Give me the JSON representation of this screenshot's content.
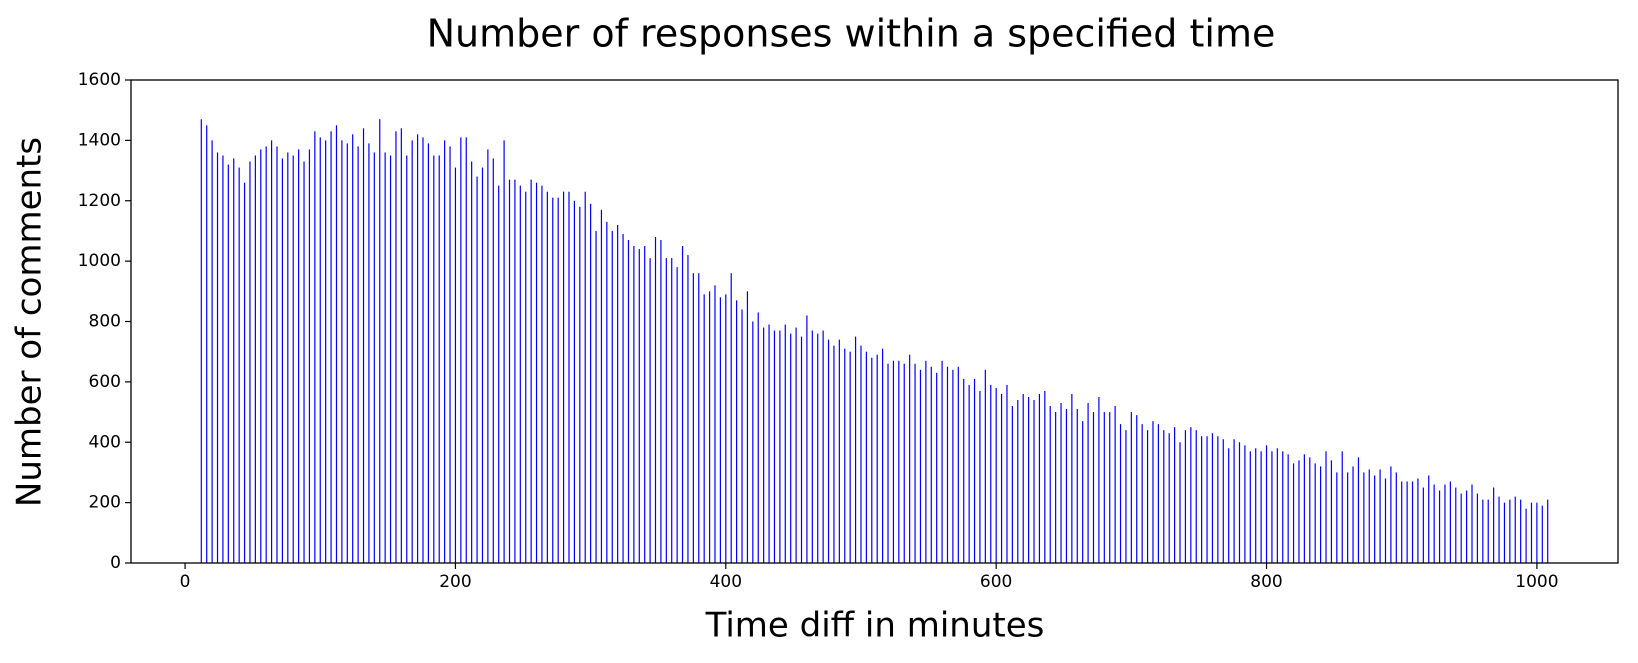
{
  "chart_data": {
    "type": "bar",
    "title": "Number of responses within a specified time",
    "xlabel": "Time diff in minutes",
    "ylabel": "Number of comments",
    "color": "#0000ff",
    "xlim": [
      -40,
      1060
    ],
    "ylim": [
      0,
      1600
    ],
    "xticks": [
      0,
      200,
      400,
      600,
      800,
      1000
    ],
    "yticks": [
      0,
      200,
      400,
      600,
      800,
      1000,
      1200,
      1400,
      1600
    ],
    "x": [
      12,
      16,
      20,
      24,
      28,
      32,
      36,
      40,
      44,
      48,
      52,
      56,
      60,
      64,
      68,
      72,
      76,
      80,
      84,
      88,
      92,
      96,
      100,
      104,
      108,
      112,
      116,
      120,
      124,
      128,
      132,
      136,
      140,
      144,
      148,
      152,
      156,
      160,
      164,
      168,
      172,
      176,
      180,
      184,
      188,
      192,
      196,
      200,
      204,
      208,
      212,
      216,
      220,
      224,
      228,
      232,
      236,
      240,
      244,
      248,
      252,
      256,
      260,
      264,
      268,
      272,
      276,
      280,
      284,
      288,
      292,
      296,
      300,
      304,
      308,
      312,
      316,
      320,
      324,
      328,
      332,
      336,
      340,
      344,
      348,
      352,
      356,
      360,
      364,
      368,
      372,
      376,
      380,
      384,
      388,
      392,
      396,
      400,
      404,
      408,
      412,
      416,
      420,
      424,
      428,
      432,
      436,
      440,
      444,
      448,
      452,
      456,
      460,
      464,
      468,
      472,
      476,
      480,
      484,
      488,
      492,
      496,
      500,
      504,
      508,
      512,
      516,
      520,
      524,
      528,
      532,
      536,
      540,
      544,
      548,
      552,
      556,
      560,
      564,
      568,
      572,
      576,
      580,
      584,
      588,
      592,
      596,
      600,
      604,
      608,
      612,
      616,
      620,
      624,
      628,
      632,
      636,
      640,
      644,
      648,
      652,
      656,
      660,
      664,
      668,
      672,
      676,
      680,
      684,
      688,
      692,
      696,
      700,
      704,
      708,
      712,
      716,
      720,
      724,
      728,
      732,
      736,
      740,
      744,
      748,
      752,
      756,
      760,
      764,
      768,
      772,
      776,
      780,
      784,
      788,
      792,
      796,
      800,
      804,
      808,
      812,
      816,
      820,
      824,
      828,
      832,
      836,
      840,
      844,
      848,
      852,
      856,
      860,
      864,
      868,
      872,
      876,
      880,
      884,
      888,
      892,
      896,
      900,
      904,
      908,
      912,
      916,
      920,
      924,
      928,
      932,
      936,
      940,
      944,
      948,
      952,
      956,
      960,
      964,
      968,
      972,
      976,
      980,
      984,
      988,
      992,
      996,
      1000,
      1004,
      1008
    ],
    "values": [
      1470,
      1450,
      1400,
      1360,
      1350,
      1320,
      1340,
      1310,
      1260,
      1330,
      1350,
      1370,
      1380,
      1400,
      1380,
      1340,
      1360,
      1350,
      1370,
      1330,
      1370,
      1430,
      1410,
      1400,
      1430,
      1450,
      1400,
      1390,
      1420,
      1380,
      1440,
      1390,
      1360,
      1470,
      1360,
      1350,
      1430,
      1440,
      1350,
      1400,
      1420,
      1410,
      1390,
      1350,
      1350,
      1400,
      1380,
      1310,
      1410,
      1410,
      1330,
      1280,
      1310,
      1370,
      1340,
      1250,
      1400,
      1270,
      1270,
      1250,
      1230,
      1270,
      1260,
      1250,
      1230,
      1210,
      1210,
      1230,
      1230,
      1200,
      1180,
      1230,
      1190,
      1100,
      1170,
      1130,
      1100,
      1120,
      1090,
      1070,
      1050,
      1040,
      1050,
      1010,
      1080,
      1070,
      1010,
      1010,
      980,
      1050,
      1020,
      960,
      960,
      890,
      900,
      920,
      880,
      890,
      960,
      870,
      840,
      900,
      800,
      830,
      780,
      790,
      770,
      770,
      790,
      760,
      780,
      750,
      820,
      770,
      760,
      770,
      740,
      720,
      740,
      710,
      700,
      750,
      720,
      700,
      680,
      690,
      710,
      660,
      670,
      670,
      660,
      690,
      660,
      640,
      670,
      650,
      630,
      670,
      650,
      640,
      650,
      610,
      590,
      610,
      570,
      640,
      590,
      580,
      560,
      590,
      520,
      540,
      560,
      550,
      540,
      560,
      570,
      520,
      500,
      530,
      510,
      560,
      510,
      470,
      530,
      500,
      550,
      500,
      500,
      520,
      460,
      440,
      500,
      490,
      460,
      440,
      470,
      460,
      440,
      430,
      450,
      400,
      440,
      450,
      440,
      420,
      420,
      430,
      420,
      410,
      380,
      410,
      400,
      390,
      370,
      380,
      370,
      390,
      370,
      380,
      370,
      360,
      330,
      340,
      360,
      350,
      330,
      320,
      370,
      340,
      300,
      370,
      300,
      320,
      350,
      300,
      310,
      290,
      310,
      280,
      320,
      300,
      270,
      270,
      270,
      280,
      250,
      290,
      260,
      240,
      260,
      270,
      250,
      230,
      240,
      260,
      230,
      210,
      210,
      250,
      220,
      200,
      210,
      220,
      210,
      180,
      200,
      200,
      190,
      210
    ]
  }
}
